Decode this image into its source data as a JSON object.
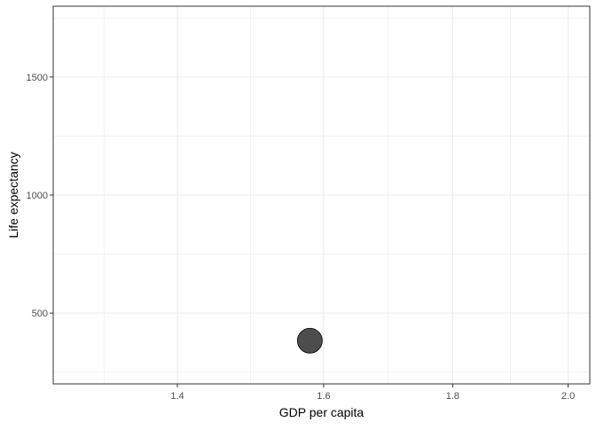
{
  "chart_data": {
    "type": "scatter",
    "title": "",
    "xlabel": "GDP per capita",
    "ylabel": "Life expectancy",
    "x_scale": "log10",
    "xlim": [
      1.25,
      2.04
    ],
    "ylim": [
      200,
      1800
    ],
    "x_ticks": [
      1.4,
      1.6,
      1.8,
      2.0
    ],
    "x_tick_labels": [
      "1.4",
      "1.6",
      "1.8",
      "2.0"
    ],
    "y_ticks": [
      500,
      1000,
      1500
    ],
    "y_tick_labels": [
      "500",
      "1000",
      "1500"
    ],
    "grid": true,
    "legend": "none",
    "points": [
      {
        "x": 1.58,
        "y": 383
      }
    ],
    "point_color": "#4d4d4d",
    "point_stroke": "#000000",
    "panel_border_color": "#333333",
    "grid_color": "#ebebeb"
  }
}
